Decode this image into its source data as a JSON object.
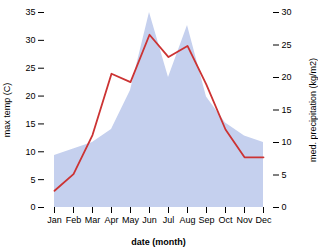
{
  "chart_data": {
    "type": "line",
    "categories": [
      "Jan",
      "Feb",
      "Mar",
      "Apr",
      "May",
      "Jun",
      "Jul",
      "Aug",
      "Sep",
      "Oct",
      "Nov",
      "Dec"
    ],
    "xlabel": "date (month)",
    "ylabel": "max temp (C)",
    "y2label": "med. precipitation (kg/m2)",
    "ylim": [
      0,
      35
    ],
    "yticks": [
      0,
      5,
      10,
      15,
      20,
      25,
      30,
      35
    ],
    "y2lim": [
      0,
      30
    ],
    "y2ticks": [
      0,
      5,
      10,
      15,
      20,
      25,
      30
    ],
    "grid": false,
    "series": [
      {
        "type": "area",
        "axis": "y2",
        "color": "#c5d0ee",
        "values": [
          8.0,
          9.0,
          10.0,
          12.0,
          18.0,
          30.0,
          20.0,
          28.0,
          17.0,
          13.0,
          11.0,
          10.0
        ]
      },
      {
        "type": "line",
        "color": "#cc3333",
        "values": [
          3.0,
          6.0,
          13.0,
          24.0,
          22.5,
          31.0,
          27.0,
          29.0,
          22.0,
          14.0,
          9.0,
          9.0
        ]
      }
    ]
  }
}
